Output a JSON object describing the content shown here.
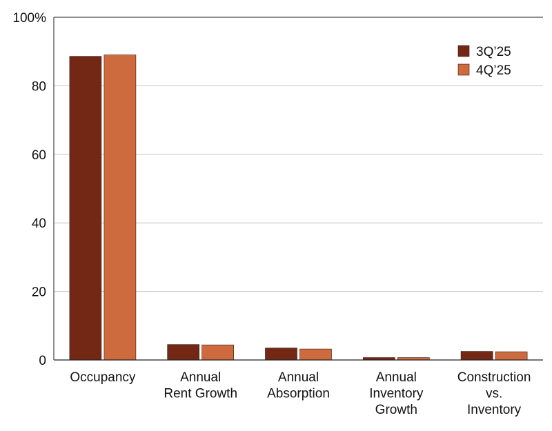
{
  "chart_data": {
    "type": "bar",
    "categories": [
      [
        "Occupancy"
      ],
      [
        "Annual",
        "Rent Growth"
      ],
      [
        "Annual",
        "Absorption"
      ],
      [
        "Annual",
        "Inventory",
        "Growth"
      ],
      [
        "Construction",
        "vs.",
        "Inventory"
      ]
    ],
    "series": [
      {
        "name": "3Q’25",
        "color": "#722815",
        "values": [
          88.6,
          4.5,
          3.5,
          0.7,
          2.5
        ]
      },
      {
        "name": "4Q’25",
        "color": "#CD6B3F",
        "values": [
          89.0,
          4.4,
          3.2,
          0.7,
          2.4
        ]
      }
    ],
    "yticks": [
      "100%",
      "80",
      "60",
      "40",
      "20",
      "0"
    ],
    "ylim": [
      0,
      100
    ],
    "grid": true,
    "legend_position": "top-right",
    "title": "",
    "xlabel": "",
    "ylabel": ""
  }
}
